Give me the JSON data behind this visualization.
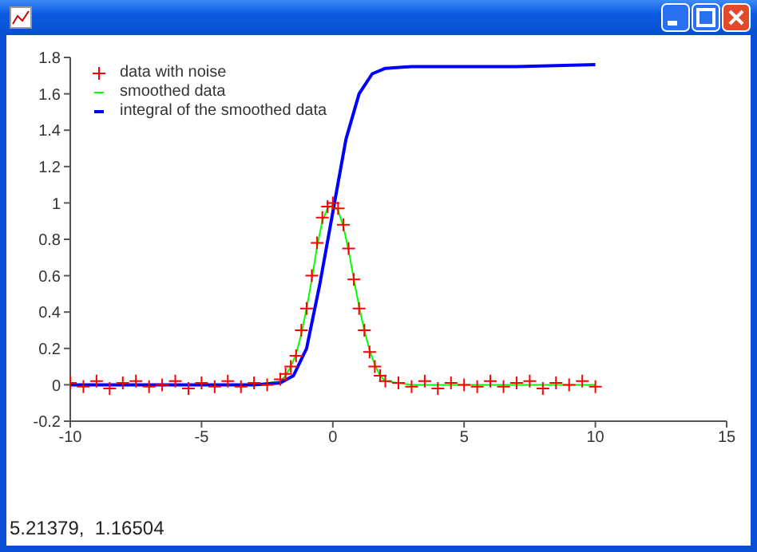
{
  "chart_data": {
    "type": "line",
    "annotations": [
      "5.21379,  1.16504"
    ],
    "xlim": [
      -10,
      15
    ],
    "xticks": [
      -10,
      -5,
      0,
      5,
      10,
      15
    ],
    "ylim": [
      -0.2,
      1.8
    ],
    "yticks": [
      -0.2,
      0,
      0.2,
      0.4,
      0.6,
      0.8,
      1,
      1.2,
      1.4,
      1.6,
      1.8
    ],
    "grid": false,
    "legend": "top left",
    "series": [
      {
        "name": "data with noise",
        "type": "scatter",
        "marker": "cross",
        "color": "#ff0000",
        "x": [
          -10,
          -9.5,
          -9,
          -8.5,
          -8,
          -7.5,
          -7,
          -6.5,
          -6,
          -5.5,
          -5,
          -4.5,
          -4,
          -3.5,
          -3,
          -2.5,
          -2,
          -1.8,
          -1.6,
          -1.4,
          -1.2,
          -1,
          -0.8,
          -0.6,
          -0.4,
          -0.2,
          0,
          0.2,
          0.4,
          0.6,
          0.8,
          1,
          1.2,
          1.4,
          1.6,
          1.8,
          2,
          2.5,
          3,
          3.5,
          4,
          4.5,
          5,
          5.5,
          6,
          6.5,
          7,
          7.5,
          8,
          8.5,
          9,
          9.5,
          10
        ],
        "values": [
          0.01,
          -0.01,
          0.02,
          -0.02,
          0.01,
          0.02,
          -0.01,
          0,
          0.02,
          -0.02,
          0.01,
          -0.01,
          0.02,
          -0.01,
          0.01,
          0,
          0.03,
          0.06,
          0.1,
          0.16,
          0.3,
          0.42,
          0.6,
          0.78,
          0.92,
          0.98,
          1,
          0.97,
          0.88,
          0.75,
          0.58,
          0.42,
          0.3,
          0.18,
          0.1,
          0.05,
          0.02,
          0.01,
          -0.01,
          0.02,
          -0.02,
          0.01,
          0,
          -0.01,
          0.02,
          -0.01,
          0.01,
          0.02,
          -0.02,
          0.01,
          0,
          0.02,
          -0.01
        ]
      },
      {
        "name": "smoothed data",
        "type": "line",
        "color": "#00ff00",
        "x": [
          -3,
          -2,
          -1.8,
          -1.6,
          -1.4,
          -1.2,
          -1,
          -0.8,
          -0.6,
          -0.4,
          -0.2,
          0,
          0.2,
          0.4,
          0.6,
          0.8,
          1,
          1.2,
          1.4,
          1.6,
          1.8,
          2,
          3,
          4,
          6,
          8,
          10
        ],
        "values": [
          0,
          0.02,
          0.05,
          0.1,
          0.17,
          0.28,
          0.42,
          0.58,
          0.76,
          0.9,
          0.97,
          0.99,
          0.96,
          0.87,
          0.74,
          0.58,
          0.43,
          0.3,
          0.19,
          0.11,
          0.05,
          0.02,
          0,
          0,
          0,
          0,
          0
        ]
      },
      {
        "name": "integral of the smoothed data",
        "type": "line",
        "color": "#0000ff",
        "x": [
          -10,
          -6,
          -3,
          -2,
          -1.5,
          -1,
          -0.5,
          0,
          0.5,
          1,
          1.5,
          2,
          3,
          5,
          7,
          10
        ],
        "values": [
          0,
          0,
          0,
          0.01,
          0.05,
          0.2,
          0.55,
          0.95,
          1.35,
          1.6,
          1.71,
          1.74,
          1.75,
          1.75,
          1.75,
          1.76
        ]
      }
    ]
  }
}
